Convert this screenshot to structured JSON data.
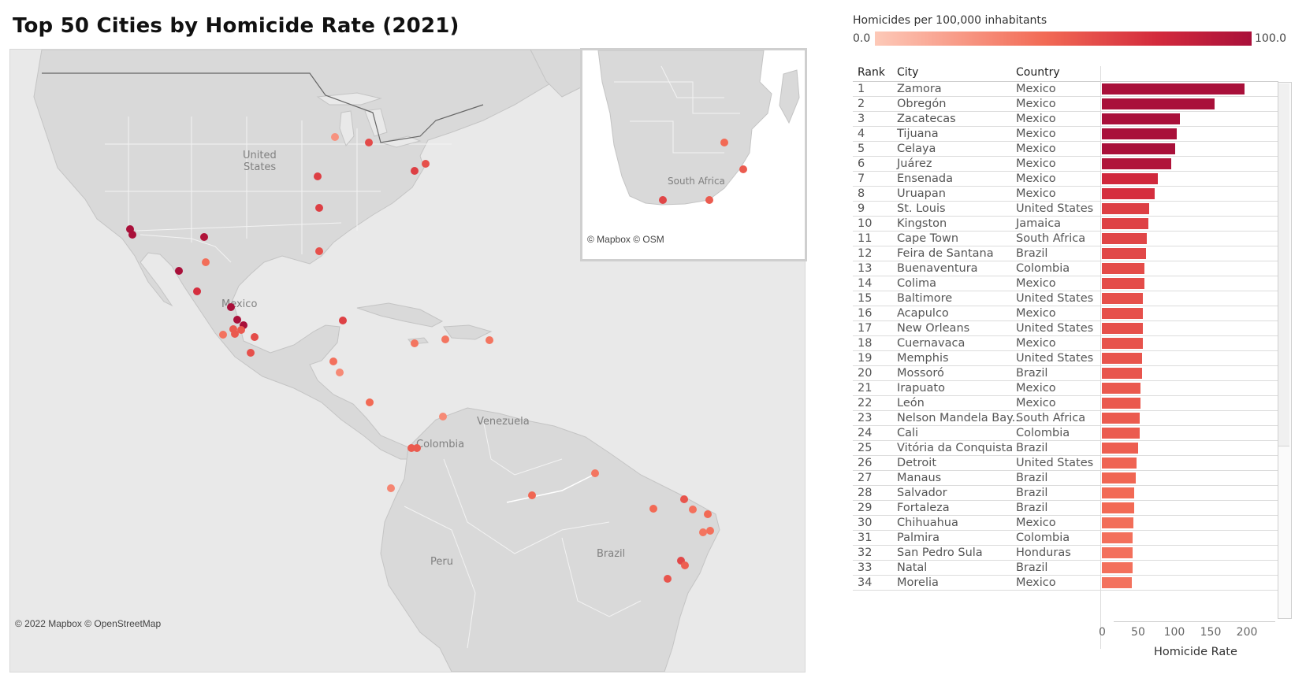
{
  "title": "Top 50 Cities by Homicide Rate (2021)",
  "legend": {
    "title": "Homicides per 100,000 inhabitants",
    "min_label": "0.0",
    "max_label": "100.0"
  },
  "map": {
    "credit": "© 2022 Mapbox © OpenStreetMap",
    "labels": [
      "United States",
      "Mexico",
      "Venezuela",
      "Colombia",
      "Peru",
      "Brazil"
    ],
    "inset_label": "South Africa",
    "inset_credit": "© Mapbox © OSM"
  },
  "table": {
    "col_rank": "Rank",
    "col_city": "City",
    "col_country": "Country"
  },
  "colors": {
    "high": "#a9103a",
    "mid": "#d32a3c",
    "low": "#f26a55",
    "land": "#d9d9d9",
    "water": "#e9e9e9"
  },
  "chart_data": {
    "type": "bar",
    "xlabel": "Homicide Rate",
    "xticks": [
      0,
      50,
      100,
      150,
      200
    ],
    "xlim": [
      0,
      215
    ],
    "rows": [
      {
        "rank": "1",
        "city": "Zamora",
        "country": "Mexico",
        "rate": 196
      },
      {
        "rank": "2",
        "city": "Obregón",
        "country": "Mexico",
        "rate": 155
      },
      {
        "rank": "3",
        "city": "Zacatecas",
        "country": "Mexico",
        "rate": 107
      },
      {
        "rank": "4",
        "city": "Tijuana",
        "country": "Mexico",
        "rate": 103
      },
      {
        "rank": "5",
        "city": "Celaya",
        "country": "Mexico",
        "rate": 101
      },
      {
        "rank": "6",
        "city": "Juárez",
        "country": "Mexico",
        "rate": 96
      },
      {
        "rank": "7",
        "city": "Ensenada",
        "country": "Mexico",
        "rate": 77
      },
      {
        "rank": "8",
        "city": "Uruapan",
        "country": "Mexico",
        "rate": 73
      },
      {
        "rank": "9",
        "city": "St. Louis",
        "country": "United States",
        "rate": 65
      },
      {
        "rank": "10",
        "city": "Kingston",
        "country": "Jamaica",
        "rate": 64
      },
      {
        "rank": "11",
        "city": "Cape Town",
        "country": "South Africa",
        "rate": 62
      },
      {
        "rank": "12",
        "city": "Feira de Santana",
        "country": "Brazil",
        "rate": 61
      },
      {
        "rank": "13",
        "city": "Buenaventura",
        "country": "Colombia",
        "rate": 59
      },
      {
        "rank": "14",
        "city": "Colima",
        "country": "Mexico",
        "rate": 59
      },
      {
        "rank": "15",
        "city": "Baltimore",
        "country": "United States",
        "rate": 57
      },
      {
        "rank": "16",
        "city": "Acapulco",
        "country": "Mexico",
        "rate": 57
      },
      {
        "rank": "17",
        "city": "New Orleans",
        "country": "United States",
        "rate": 57
      },
      {
        "rank": "18",
        "city": "Cuernavaca",
        "country": "Mexico",
        "rate": 56
      },
      {
        "rank": "19",
        "city": "Memphis",
        "country": "United States",
        "rate": 55
      },
      {
        "rank": "20",
        "city": "Mossoró",
        "country": "Brazil",
        "rate": 55
      },
      {
        "rank": "21",
        "city": "Irapuato",
        "country": "Mexico",
        "rate": 53
      },
      {
        "rank": "22",
        "city": "León",
        "country": "Mexico",
        "rate": 53
      },
      {
        "rank": "23",
        "city": "Nelson Mandela Bay..",
        "country": "South Africa",
        "rate": 52
      },
      {
        "rank": "24",
        "city": "Cali",
        "country": "Colombia",
        "rate": 52
      },
      {
        "rank": "25",
        "city": "Vitória da Conquista",
        "country": "Brazil",
        "rate": 50
      },
      {
        "rank": "26",
        "city": "Detroit",
        "country": "United States",
        "rate": 48
      },
      {
        "rank": "27",
        "city": "Manaus",
        "country": "Brazil",
        "rate": 47
      },
      {
        "rank": "28",
        "city": "Salvador",
        "country": "Brazil",
        "rate": 45
      },
      {
        "rank": "29",
        "city": "Fortaleza",
        "country": "Brazil",
        "rate": 45
      },
      {
        "rank": "30",
        "city": "Chihuahua",
        "country": "Mexico",
        "rate": 43
      },
      {
        "rank": "31",
        "city": "Palmira",
        "country": "Colombia",
        "rate": 42
      },
      {
        "rank": "32",
        "city": "San Pedro Sula",
        "country": "Honduras",
        "rate": 42
      },
      {
        "rank": "33",
        "city": "Natal",
        "country": "Brazil",
        "rate": 42
      },
      {
        "rank": "34",
        "city": "Morelia",
        "country": "Mexico",
        "rate": 41
      }
    ]
  }
}
